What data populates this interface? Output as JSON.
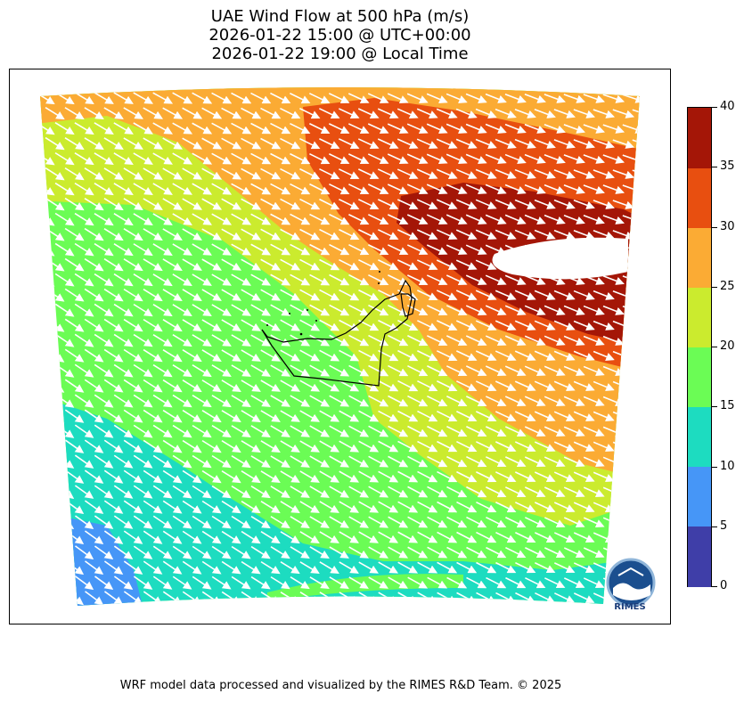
{
  "title": {
    "line1": "UAE Wind Flow at 500 hPa (m/s)",
    "line2": "2026-01-22 15:00 @ UTC+00:00",
    "line3": "2026-01-22 19:00 @ Local Time"
  },
  "colorbar": {
    "ticks": [
      "0",
      "5",
      "10",
      "15",
      "20",
      "25",
      "30",
      "35",
      "40"
    ],
    "colors": [
      "#3f3ea8",
      "#4696f7",
      "#1ddcc0",
      "#6bfc55",
      "#cbeb2e",
      "#fbab34",
      "#e84f10",
      "#a41607"
    ]
  },
  "colors": {
    "arrow": "#ffffff",
    "border": "#000000"
  },
  "logo": {
    "text": "RIMES",
    "icon": "rimes-logo-icon"
  },
  "footer": "WRF model data processed and visualized by the RIMES R&D Team. © 2025"
}
